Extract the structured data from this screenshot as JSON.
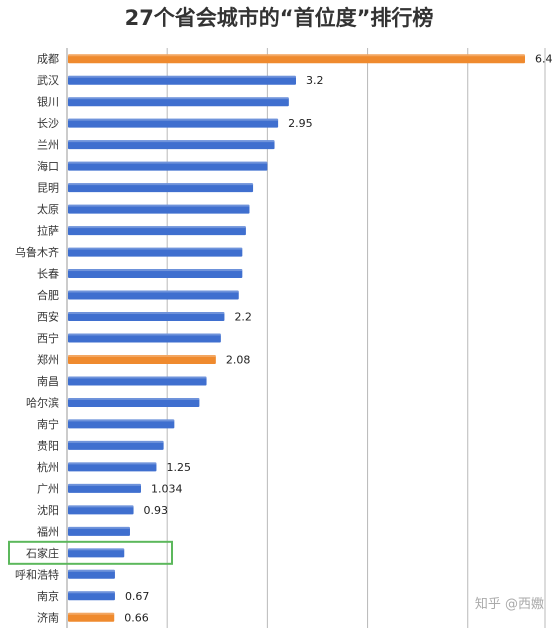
{
  "title": "27个省会城市的“首位度”排行榜",
  "watermark": "知乎 @西嫐",
  "colors": {
    "blue": "#3f6fcf",
    "orange": "#ef8a2e",
    "grid": "#b9b9b9",
    "highlight_box": "#5cb85c"
  },
  "chart_data": {
    "type": "bar",
    "orientation": "horizontal",
    "xlim": [
      0,
      6.4
    ],
    "grid": true,
    "categories": [
      "成都",
      "武汉",
      "银川",
      "长沙",
      "兰州",
      "海口",
      "昆明",
      "太原",
      "拉萨",
      "乌鲁木齐",
      "长春",
      "合肥",
      "西安",
      "西宁",
      "郑州",
      "南昌",
      "哈尔滨",
      "南宁",
      "贵阳",
      "杭州",
      "广州",
      "沈阳",
      "福州",
      "石家庄",
      "呼和浩特",
      "南京",
      "济南"
    ],
    "values": [
      6.4,
      3.2,
      3.1,
      2.95,
      2.9,
      2.8,
      2.6,
      2.55,
      2.5,
      2.45,
      2.45,
      2.4,
      2.2,
      2.15,
      2.08,
      1.95,
      1.85,
      1.5,
      1.35,
      1.25,
      1.034,
      0.93,
      0.88,
      0.8,
      0.67,
      0.67,
      0.66
    ],
    "data_labels": [
      "6.4",
      "3.2",
      "",
      "2.95",
      "",
      "",
      "",
      "",
      "",
      "",
      "",
      "",
      "2.2",
      "",
      "2.08",
      "",
      "",
      "",
      "",
      "1.25",
      "1.034",
      "0.93",
      "",
      "",
      "",
      "0.67",
      "0.66"
    ],
    "highlighted_orange": [
      "成都",
      "郑州",
      "济南"
    ],
    "boxed_category": "石家庄"
  }
}
